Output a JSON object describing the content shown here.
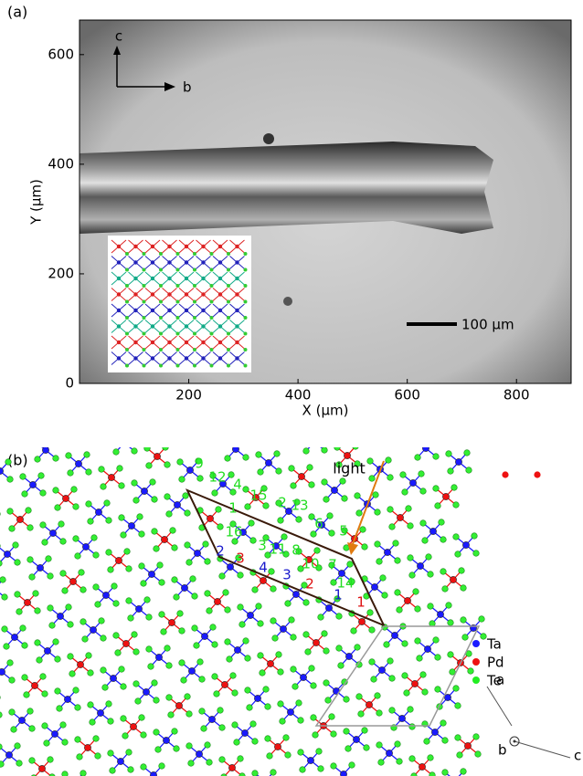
{
  "panel_a": {
    "label": "(a)",
    "x_axis": {
      "title": "X (μm)",
      "lim": [
        0,
        900
      ],
      "ticks": [
        200,
        400,
        600,
        800
      ]
    },
    "y_axis": {
      "title": "Y (μm)",
      "lim": [
        0,
        663
      ],
      "ticks": [
        0,
        200,
        400,
        600
      ]
    },
    "direction_labels": [
      "c",
      "b"
    ],
    "scale_bar": "100 μm"
  },
  "panel_b": {
    "label": "(b)",
    "light": "light",
    "site_labels": [
      {
        "text": "9",
        "color": "#22dd22"
      },
      {
        "text": "12",
        "color": "#22dd22"
      },
      {
        "text": "4",
        "color": "#22dd22"
      },
      {
        "text": "15",
        "color": "#22dd22"
      },
      {
        "text": "2",
        "color": "#22dd22"
      },
      {
        "text": "13",
        "color": "#22dd22"
      },
      {
        "text": "1",
        "color": "#22dd22"
      },
      {
        "text": "16",
        "color": "#22dd22"
      },
      {
        "text": "6",
        "color": "#22dd22"
      },
      {
        "text": "5",
        "color": "#22dd22"
      },
      {
        "text": "3",
        "color": "#22dd22"
      },
      {
        "text": "11",
        "color": "#22dd22"
      },
      {
        "text": "8",
        "color": "#22dd22"
      },
      {
        "text": "10",
        "color": "#22dd22"
      },
      {
        "text": "7",
        "color": "#22dd22"
      },
      {
        "text": "14",
        "color": "#22dd22"
      },
      {
        "text": "2",
        "color": "#1a1acc"
      },
      {
        "text": "4",
        "color": "#1a1acc"
      },
      {
        "text": "3",
        "color": "#1a1acc"
      },
      {
        "text": "1",
        "color": "#1a1acc"
      },
      {
        "text": "3",
        "color": "#dd1111"
      },
      {
        "text": "2",
        "color": "#dd1111"
      },
      {
        "text": "1",
        "color": "#dd1111"
      }
    ],
    "legend": [
      {
        "name": "Ta",
        "color": "#1a1aff"
      },
      {
        "name": "Pd",
        "color": "#ee1111"
      },
      {
        "name": "Te",
        "color": "#22ee22"
      }
    ],
    "axes": [
      "a",
      "b",
      "c"
    ]
  }
}
